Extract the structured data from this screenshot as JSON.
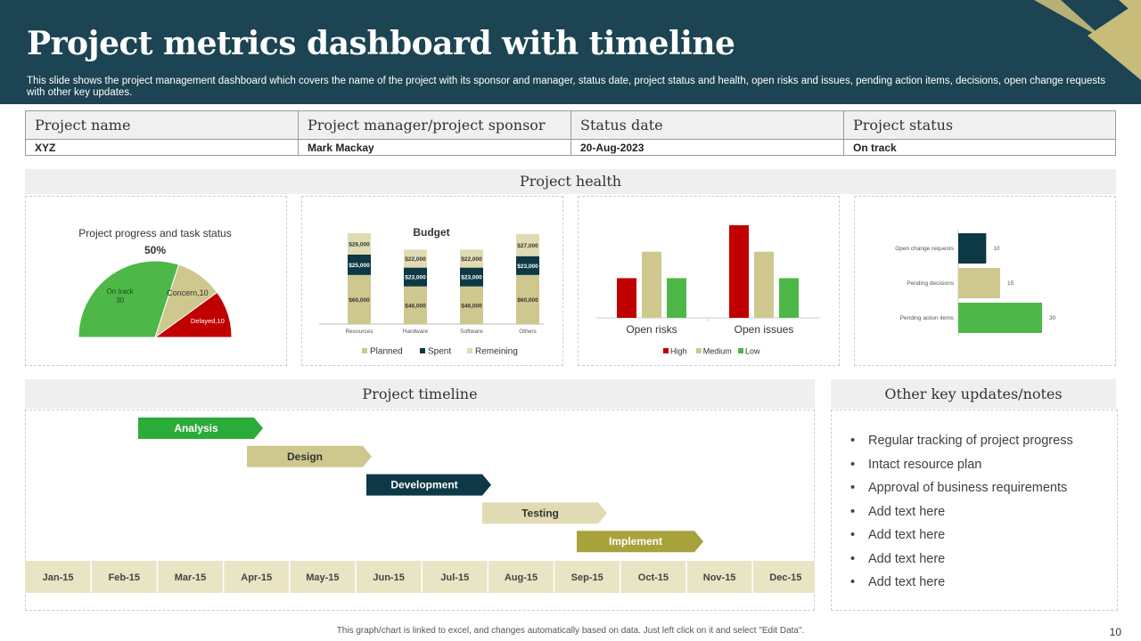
{
  "header": {
    "title": "Project metrics dashboard with timeline",
    "subtitle": "This slide shows the project management dashboard which covers the name of the project with its sponsor and manager, status date, project status and health, open risks and issues, pending action items, decisions, open change requests with other key updates."
  },
  "info_table": {
    "headers": [
      "Project name",
      "Project manager/project sponsor",
      "Status date",
      "Project status"
    ],
    "values": [
      "XYZ",
      "Mark Mackay",
      "20-Aug-2023",
      "On track"
    ]
  },
  "sections": {
    "health": "Project health",
    "timeline": "Project timeline",
    "notes": "Other key updates/notes"
  },
  "colors": {
    "header_bg": "#1c4452",
    "green": "#4db848",
    "khaki": "#cfc88e",
    "dark": "#0d3845",
    "red": "#c00000",
    "light_khaki": "#e0dbb2",
    "olive": "#a8a23c",
    "bright_green": "#2bab3a"
  },
  "chart_data": [
    {
      "type": "pie",
      "title": "Project progress and task status",
      "center_label": "50%",
      "slices": [
        {
          "label": "On track",
          "value": 30,
          "color": "#4db848"
        },
        {
          "label": "Concern",
          "value": 10,
          "color": "#cfc88e"
        },
        {
          "label": "Delayed",
          "value": 10,
          "color": "#c00000"
        }
      ]
    },
    {
      "type": "bar",
      "stacked": true,
      "title": "Budget",
      "categories": [
        "Resources",
        "Hardware",
        "Software",
        "Others"
      ],
      "series": [
        {
          "name": "Planned",
          "values": [
            60000,
            46000,
            46000,
            60000
          ],
          "labels": [
            "$60,000",
            "$46,000",
            "$46,000",
            "$60,000"
          ],
          "color": "#cfc88e"
        },
        {
          "name": "Spent",
          "values": [
            25000,
            23000,
            23000,
            23000
          ],
          "labels": [
            "$25,000",
            "$23,000",
            "$23,000",
            "$23,000"
          ],
          "color": "#0d3845"
        },
        {
          "name": "Remeining",
          "values": [
            26000,
            22000,
            22000,
            27000
          ],
          "labels": [
            "$26,000",
            "$22,000",
            "$22,000",
            "$27,000"
          ],
          "color": "#e0dbb2"
        }
      ],
      "legend": "bottom"
    },
    {
      "type": "bar",
      "categories": [
        "Open risks",
        "Open issues"
      ],
      "series": [
        {
          "name": "High",
          "values": [
            9,
            21
          ],
          "color": "#c00000"
        },
        {
          "name": "Medium",
          "values": [
            15,
            15
          ],
          "color": "#cfc88e"
        },
        {
          "name": "Low",
          "values": [
            9,
            9
          ],
          "color": "#4db848"
        }
      ],
      "ylim": [
        0,
        21
      ],
      "legend": "bottom"
    },
    {
      "type": "bar",
      "orientation": "horizontal",
      "categories": [
        "Open change requests",
        "Pending decisions",
        "Pending action items"
      ],
      "values": [
        10,
        15,
        30
      ],
      "colors": [
        "#0d3845",
        "#cfc88e",
        "#4db848"
      ],
      "xlim": [
        0,
        30
      ]
    }
  ],
  "timeline": {
    "months": [
      "Jan-15",
      "Feb-15",
      "Mar-15",
      "Apr-15",
      "May-15",
      "Jun-15",
      "Jul-15",
      "Aug-15",
      "Sep-15",
      "Oct-15",
      "Nov-15",
      "Dec-15"
    ],
    "tasks": [
      {
        "name": "Analysis",
        "start": "Feb-15",
        "end": "Mar-15",
        "color": "#2bab3a",
        "text_color": "#ffffff"
      },
      {
        "name": "Design",
        "start": "Apr-15",
        "end": "May-15",
        "color": "#cfc88e",
        "text_color": "#333333"
      },
      {
        "name": "Development",
        "start": "Jun-15",
        "end": "Jul-15",
        "color": "#0d3845",
        "text_color": "#ffffff"
      },
      {
        "name": "Testing",
        "start": "Aug-15",
        "end": "Sep-15",
        "color": "#e0dbb2",
        "text_color": "#333333"
      },
      {
        "name": "Implement",
        "start": "Sep-15",
        "end": "Oct-15",
        "color": "#a8a23c",
        "text_color": "#ffffff"
      }
    ]
  },
  "notes": [
    "Regular tracking of project progress",
    "Intact resource plan",
    "Approval of business requirements",
    "Add text here",
    "Add text here",
    "Add text here",
    "Add text here"
  ],
  "footer": {
    "text": "This graph/chart is linked to excel, and changes automatically based on data. Just left click on it and select \"Edit Data\".",
    "page": "10"
  }
}
